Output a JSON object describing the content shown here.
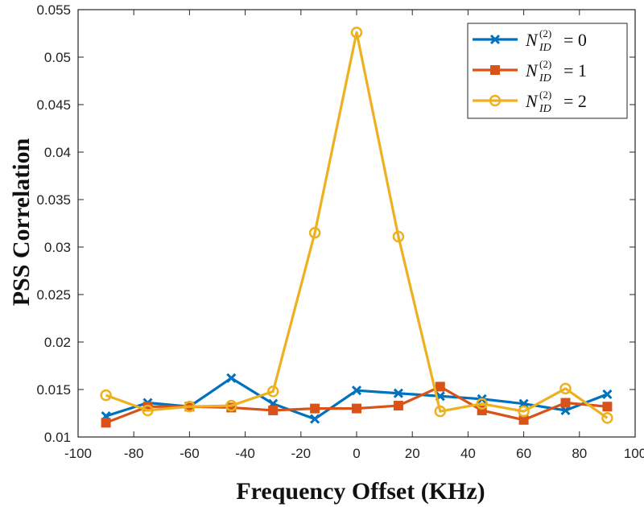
{
  "chart_data": {
    "type": "line",
    "title": "",
    "xlabel": "Frequency Offset (KHz)",
    "ylabel": "PSS Correlation",
    "xlim": [
      -100,
      100
    ],
    "ylim": [
      0.01,
      0.055
    ],
    "xticks": [
      -100,
      -80,
      -60,
      -40,
      -20,
      0,
      20,
      40,
      60,
      80,
      100
    ],
    "yticks": [
      0.01,
      0.015,
      0.02,
      0.025,
      0.03,
      0.035,
      0.04,
      0.045,
      0.05,
      0.055
    ],
    "xtick_labels": [
      "-100",
      "-80",
      "-60",
      "-40",
      "-20",
      "0",
      "20",
      "40",
      "60",
      "80",
      "100"
    ],
    "ytick_labels": [
      "0.01",
      "0.015",
      "0.02",
      "0.025",
      "0.03",
      "0.035",
      "0.04",
      "0.045",
      "0.05",
      "0.055"
    ],
    "grid": false,
    "legend_position": "top-right",
    "x": [
      -90,
      -75,
      -60,
      -45,
      -30,
      -15,
      0,
      15,
      30,
      45,
      60,
      75,
      90
    ],
    "series": [
      {
        "name": "N_ID^(2) = 0",
        "legend": {
          "base": "N",
          "sup": "(2)",
          "sub": "ID",
          "eq": "= 0"
        },
        "color": "#0072BD",
        "marker": "x",
        "values": [
          0.0122,
          0.0136,
          0.0132,
          0.0162,
          0.0135,
          0.0119,
          0.0149,
          0.0146,
          0.0143,
          0.014,
          0.0135,
          0.0128,
          0.0145
        ]
      },
      {
        "name": "N_ID^(2) = 1",
        "legend": {
          "base": "N",
          "sup": "(2)",
          "sub": "ID",
          "eq": "= 1"
        },
        "color": "#D95319",
        "marker": "square",
        "values": [
          0.0115,
          0.0132,
          0.0132,
          0.0131,
          0.0128,
          0.013,
          0.013,
          0.0133,
          0.0153,
          0.0128,
          0.0118,
          0.0136,
          0.0132
        ]
      },
      {
        "name": "N_ID^(2) = 2",
        "legend": {
          "base": "N",
          "sup": "(2)",
          "sub": "ID",
          "eq": "= 2"
        },
        "color": "#EDB120",
        "marker": "circle",
        "values": [
          0.0144,
          0.0128,
          0.0132,
          0.0133,
          0.0148,
          0.0315,
          0.0526,
          0.0311,
          0.0127,
          0.0135,
          0.0127,
          0.0151,
          0.012
        ]
      }
    ]
  }
}
